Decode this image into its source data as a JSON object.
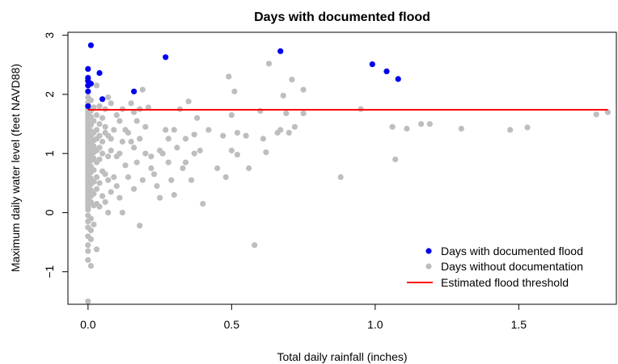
{
  "chart_data": {
    "type": "scatter",
    "title": "Days with documented flood",
    "xlabel": "Total daily rainfall (inches)",
    "ylabel": "Maximum daily water level (feet NAVD88)",
    "xlim": [
      -0.07,
      1.84
    ],
    "ylim": [
      -1.55,
      3.05
    ],
    "xticks": [
      0.0,
      0.5,
      1.0,
      1.5
    ],
    "xtick_labels": [
      "0.0",
      "0.5",
      "1.0",
      "1.5"
    ],
    "yticks": [
      -1,
      0,
      1,
      2,
      3
    ],
    "ytick_labels": [
      "−1",
      "0",
      "1",
      "2",
      "3"
    ],
    "grid": false,
    "legend_position": "bottom-right",
    "series": [
      {
        "name": "Days with documented flood",
        "color": "#0000ee",
        "marker": "point",
        "x": [
          0.01,
          0.0,
          0.0,
          0.0,
          0.01,
          0.0,
          0.0,
          0.0,
          0.04,
          0.05,
          0.16,
          0.27,
          0.67,
          0.99,
          1.04,
          1.08
        ],
        "y": [
          2.83,
          2.43,
          2.28,
          2.23,
          2.18,
          2.15,
          2.05,
          1.8,
          2.36,
          1.92,
          2.05,
          2.63,
          2.73,
          2.51,
          2.39,
          2.26
        ]
      },
      {
        "name": "Days without documentation",
        "color": "#bebebe",
        "marker": "point",
        "x": [
          0.0,
          0.0,
          0.0,
          0.0,
          0.0,
          0.0,
          0.0,
          0.0,
          0.0,
          0.0,
          0.0,
          0.0,
          0.0,
          0.0,
          0.0,
          0.0,
          0.0,
          0.0,
          0.0,
          0.0,
          0.0,
          0.0,
          0.0,
          0.0,
          0.0,
          0.0,
          0.0,
          0.0,
          0.0,
          0.0,
          0.0,
          0.0,
          0.0,
          0.0,
          0.0,
          0.0,
          0.0,
          0.0,
          0.0,
          0.0,
          0.0,
          0.0,
          0.0,
          0.0,
          0.0,
          0.0,
          0.01,
          0.01,
          0.01,
          0.01,
          0.01,
          0.01,
          0.01,
          0.01,
          0.01,
          0.01,
          0.01,
          0.01,
          0.01,
          0.01,
          0.01,
          0.01,
          0.01,
          0.01,
          0.01,
          0.01,
          0.01,
          0.02,
          0.02,
          0.02,
          0.02,
          0.02,
          0.02,
          0.02,
          0.02,
          0.02,
          0.02,
          0.02,
          0.02,
          0.03,
          0.03,
          0.03,
          0.03,
          0.03,
          0.03,
          0.03,
          0.03,
          0.03,
          0.03,
          0.04,
          0.04,
          0.04,
          0.04,
          0.04,
          0.04,
          0.04,
          0.05,
          0.05,
          0.05,
          0.05,
          0.05,
          0.06,
          0.06,
          0.06,
          0.06,
          0.06,
          0.07,
          0.07,
          0.07,
          0.07,
          0.07,
          0.08,
          0.08,
          0.08,
          0.08,
          0.09,
          0.09,
          0.1,
          0.1,
          0.1,
          0.11,
          0.11,
          0.11,
          0.12,
          0.12,
          0.12,
          0.13,
          0.13,
          0.14,
          0.14,
          0.15,
          0.15,
          0.16,
          0.16,
          0.16,
          0.17,
          0.17,
          0.18,
          0.18,
          0.18,
          0.19,
          0.19,
          0.2,
          0.2,
          0.21,
          0.22,
          0.22,
          0.23,
          0.24,
          0.25,
          0.25,
          0.26,
          0.27,
          0.28,
          0.28,
          0.29,
          0.3,
          0.3,
          0.31,
          0.32,
          0.33,
          0.34,
          0.34,
          0.35,
          0.36,
          0.37,
          0.37,
          0.38,
          0.39,
          0.4,
          0.42,
          0.45,
          0.47,
          0.48,
          0.49,
          0.5,
          0.5,
          0.51,
          0.52,
          0.52,
          0.55,
          0.56,
          0.58,
          0.6,
          0.61,
          0.62,
          0.63,
          0.66,
          0.67,
          0.68,
          0.69,
          0.7,
          0.71,
          0.72,
          0.75,
          0.75,
          0.88,
          0.95,
          1.06,
          1.07,
          1.11,
          1.16,
          1.19,
          1.3,
          1.47,
          1.53,
          1.77,
          1.81
        ],
        "y": [
          1.95,
          1.86,
          1.82,
          1.74,
          1.7,
          1.65,
          1.6,
          1.55,
          1.5,
          1.45,
          1.4,
          1.35,
          1.3,
          1.25,
          1.2,
          1.15,
          1.1,
          1.05,
          1.0,
          0.95,
          0.9,
          0.85,
          0.8,
          0.75,
          0.7,
          0.65,
          0.6,
          0.55,
          0.5,
          0.45,
          0.4,
          0.35,
          0.3,
          0.25,
          0.2,
          0.15,
          0.1,
          0.05,
          -0.05,
          -0.15,
          -0.25,
          -0.4,
          -0.55,
          -0.65,
          -0.8,
          -1.5,
          1.9,
          1.72,
          1.62,
          1.48,
          1.38,
          1.28,
          1.18,
          1.08,
          0.98,
          0.88,
          0.78,
          0.68,
          0.58,
          0.48,
          0.38,
          0.28,
          0.18,
          -0.1,
          -0.3,
          -0.45,
          -0.9,
          1.78,
          1.55,
          1.35,
          1.22,
          1.12,
          1.02,
          0.92,
          0.72,
          0.52,
          0.32,
          0.12,
          -0.2,
          2.15,
          1.65,
          1.4,
          1.25,
          1.05,
          0.85,
          0.6,
          0.4,
          0.15,
          -0.62,
          1.8,
          1.5,
          1.3,
          1.1,
          0.9,
          0.5,
          0.1,
          1.6,
          1.2,
          1.0,
          0.7,
          0.28,
          1.75,
          1.45,
          1.35,
          0.65,
          0.18,
          1.95,
          1.3,
          0.95,
          0.55,
          0.0,
          1.85,
          1.25,
          1.05,
          0.35,
          1.4,
          0.6,
          1.65,
          0.95,
          0.45,
          1.55,
          1.0,
          0.25,
          1.75,
          1.2,
          0.0,
          1.4,
          0.8,
          1.35,
          0.6,
          1.85,
          1.2,
          1.7,
          1.1,
          0.4,
          1.55,
          0.85,
          1.75,
          1.25,
          -0.22,
          2.08,
          0.55,
          1.45,
          1.0,
          1.78,
          0.75,
          0.95,
          0.65,
          0.45,
          1.05,
          0.25,
          1.0,
          1.4,
          0.85,
          1.25,
          0.55,
          1.4,
          0.3,
          1.1,
          1.75,
          0.75,
          0.85,
          1.25,
          1.88,
          0.55,
          1.0,
          1.32,
          1.6,
          1.05,
          0.15,
          1.4,
          0.75,
          1.3,
          0.6,
          2.3,
          1.05,
          1.65,
          2.05,
          0.98,
          1.35,
          1.3,
          0.75,
          -0.55,
          1.72,
          1.25,
          1.02,
          2.52,
          1.35,
          1.4,
          1.98,
          1.68,
          1.35,
          2.25,
          1.45,
          2.08,
          1.68,
          0.6,
          1.75,
          1.45,
          0.9,
          1.42,
          1.5,
          1.5,
          1.42,
          1.4,
          1.44,
          1.66,
          1.7
        ]
      }
    ],
    "lines": [
      {
        "name": "Estimated flood threshold",
        "color": "#ff0000",
        "type": "hline",
        "y": 1.74
      }
    ]
  }
}
